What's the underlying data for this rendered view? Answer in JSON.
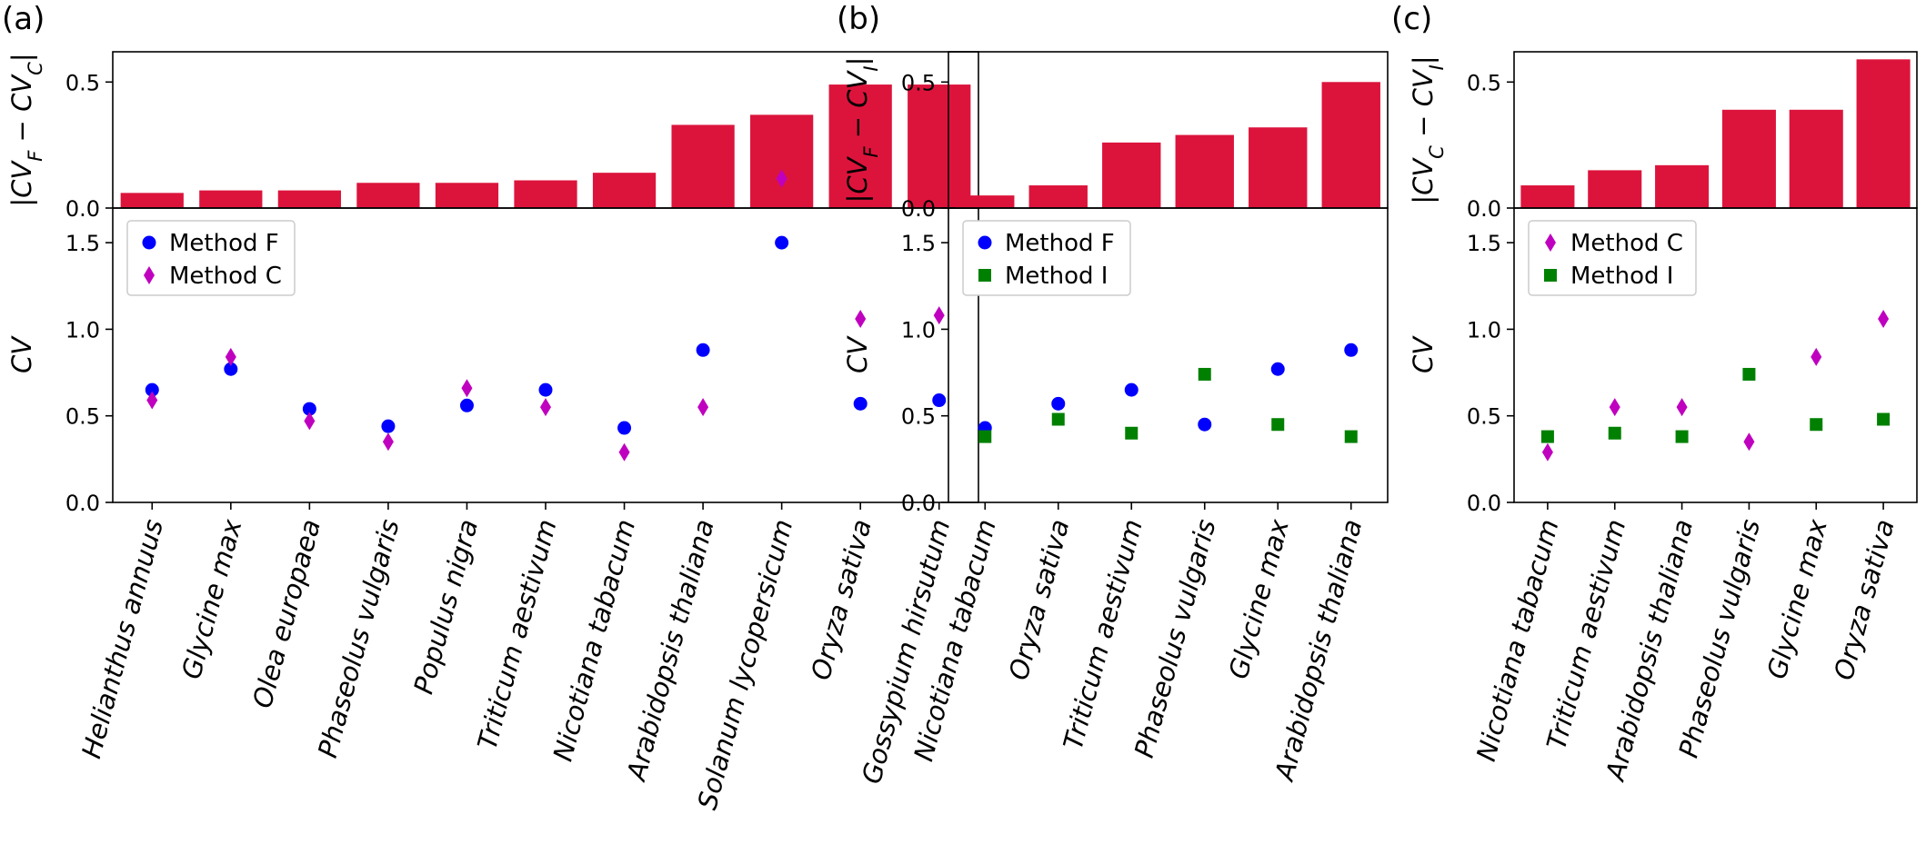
{
  "chart_data": [
    {
      "panel": "(a)",
      "type": "bar+scatter",
      "categories": [
        "Helianthus annuus",
        "Glycine max",
        "Olea europaea",
        "Phaseolus vulgaris",
        "Populus nigra",
        "Triticum aestivum",
        "Nicotiana tabacum",
        "Arabidopsis thaliana",
        "Solanum lycopersicum",
        "Oryza sativa",
        "Gossypium hirsutum"
      ],
      "top": {
        "type": "bar",
        "ylabel": "|CV_F − CV_C|",
        "values": [
          0.06,
          0.07,
          0.07,
          0.1,
          0.1,
          0.11,
          0.14,
          0.33,
          0.37,
          0.49,
          0.49
        ],
        "ylim": [
          0,
          0.62
        ],
        "yticks": [
          "0.0",
          "0.5"
        ],
        "color": "#dc143c"
      },
      "bottom": {
        "type": "scatter",
        "ylabel": "CV",
        "ylim": [
          0,
          1.7
        ],
        "yticks": [
          "0.0",
          "0.5",
          "1.0",
          "1.5"
        ],
        "legend_position": "top-left",
        "series": [
          {
            "name": "Method F",
            "marker": "circle",
            "color": "#0000ff",
            "values": [
              0.65,
              0.77,
              0.54,
              0.44,
              0.56,
              0.65,
              0.43,
              0.88,
              1.5,
              0.57,
              0.59
            ]
          },
          {
            "name": "Method C",
            "marker": "diamond",
            "color": "#bf00bf",
            "values": [
              0.59,
              0.84,
              0.47,
              0.35,
              0.66,
              0.55,
              0.29,
              0.55,
              1.87,
              1.06,
              1.08
            ]
          }
        ]
      }
    },
    {
      "panel": "(b)",
      "type": "bar+scatter",
      "categories": [
        "Nicotiana tabacum",
        "Oryza sativa",
        "Triticum aestivum",
        "Phaseolus vulgaris",
        "Glycine max",
        "Arabidopsis thaliana"
      ],
      "top": {
        "type": "bar",
        "ylabel": "|CV_F − CV_I|",
        "values": [
          0.05,
          0.09,
          0.26,
          0.29,
          0.32,
          0.5
        ],
        "ylim": [
          0,
          0.62
        ],
        "yticks": [
          "0.0",
          "0.5"
        ],
        "color": "#dc143c"
      },
      "bottom": {
        "type": "scatter",
        "ylabel": "CV",
        "ylim": [
          0,
          1.7
        ],
        "yticks": [
          "0.0",
          "0.5",
          "1.0",
          "1.5"
        ],
        "legend_position": "top-left",
        "series": [
          {
            "name": "Method F",
            "marker": "circle",
            "color": "#0000ff",
            "values": [
              0.43,
              0.57,
              0.65,
              0.45,
              0.77,
              0.88
            ]
          },
          {
            "name": "Method I",
            "marker": "square",
            "color": "#008000",
            "values": [
              0.38,
              0.48,
              0.4,
              0.74,
              0.45,
              0.38
            ]
          }
        ]
      }
    },
    {
      "panel": "(c)",
      "type": "bar+scatter",
      "categories": [
        "Nicotiana tabacum",
        "Triticum aestivum",
        "Arabidopsis thaliana",
        "Phaseolus vulgaris",
        "Glycine max",
        "Oryza sativa"
      ],
      "top": {
        "type": "bar",
        "ylabel": "|CV_C − CV_I|",
        "values": [
          0.09,
          0.15,
          0.17,
          0.39,
          0.39,
          0.59
        ],
        "ylim": [
          0,
          0.62
        ],
        "yticks": [
          "0.0",
          "0.5"
        ],
        "color": "#dc143c"
      },
      "bottom": {
        "type": "scatter",
        "ylabel": "CV",
        "ylim": [
          0,
          1.7
        ],
        "yticks": [
          "0.0",
          "0.5",
          "1.0",
          "1.5"
        ],
        "legend_position": "top-left",
        "series": [
          {
            "name": "Method C",
            "marker": "diamond",
            "color": "#bf00bf",
            "values": [
              0.29,
              0.55,
              0.55,
              0.35,
              0.84,
              1.06
            ]
          },
          {
            "name": "Method I",
            "marker": "square",
            "color": "#008000",
            "values": [
              0.38,
              0.4,
              0.38,
              0.74,
              0.45,
              0.48
            ]
          }
        ]
      }
    }
  ]
}
